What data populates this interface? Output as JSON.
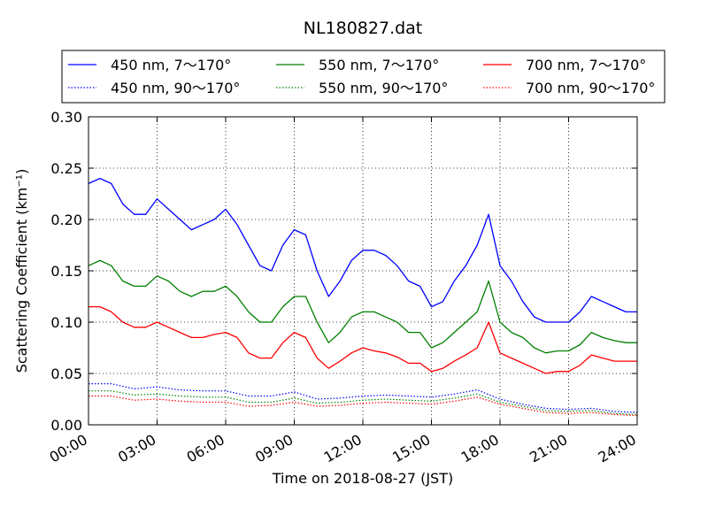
{
  "chart_data": {
    "type": "line",
    "title": "NL180827.dat",
    "xlabel": "Time on 2018-08-27 (JST)",
    "ylabel": "Scattering Coefficient (km⁻¹)",
    "x_ticks": [
      "00:00",
      "03:00",
      "06:00",
      "09:00",
      "12:00",
      "15:00",
      "18:00",
      "21:00",
      "24:00"
    ],
    "y_ticks": [
      "0.00",
      "0.05",
      "0.10",
      "0.15",
      "0.20",
      "0.25",
      "0.30"
    ],
    "xlim": [
      0,
      24
    ],
    "ylim": [
      0,
      0.3
    ],
    "grid": true,
    "legend_position": "top",
    "series": [
      {
        "name": "450 nm, 7～170°",
        "color": "#0000ff",
        "style": "solid",
        "x": [
          0.0,
          0.5,
          1.0,
          1.5,
          2.0,
          2.5,
          3.0,
          3.5,
          4.0,
          4.5,
          5.0,
          5.5,
          6.0,
          6.5,
          7.0,
          7.5,
          8.0,
          8.5,
          9.0,
          9.5,
          10.0,
          10.5,
          11.0,
          11.5,
          12.0,
          12.5,
          13.0,
          13.5,
          14.0,
          14.5,
          15.0,
          15.5,
          16.0,
          16.5,
          17.0,
          17.5,
          18.0,
          18.5,
          19.0,
          19.5,
          20.0,
          20.5,
          21.0,
          21.5,
          22.0,
          22.5,
          23.0,
          23.5,
          24.0
        ],
        "y": [
          0.235,
          0.24,
          0.235,
          0.215,
          0.205,
          0.205,
          0.22,
          0.21,
          0.2,
          0.19,
          0.195,
          0.2,
          0.21,
          0.195,
          0.175,
          0.155,
          0.15,
          0.175,
          0.19,
          0.185,
          0.15,
          0.125,
          0.14,
          0.16,
          0.17,
          0.17,
          0.165,
          0.155,
          0.14,
          0.135,
          0.115,
          0.12,
          0.14,
          0.155,
          0.175,
          0.205,
          0.155,
          0.14,
          0.12,
          0.105,
          0.1,
          0.1,
          0.1,
          0.11,
          0.125,
          0.12,
          0.115,
          0.11,
          0.11
        ]
      },
      {
        "name": "550 nm, 7～170°",
        "color": "#008000",
        "style": "solid",
        "x": [
          0.0,
          0.5,
          1.0,
          1.5,
          2.0,
          2.5,
          3.0,
          3.5,
          4.0,
          4.5,
          5.0,
          5.5,
          6.0,
          6.5,
          7.0,
          7.5,
          8.0,
          8.5,
          9.0,
          9.5,
          10.0,
          10.5,
          11.0,
          11.5,
          12.0,
          12.5,
          13.0,
          13.5,
          14.0,
          14.5,
          15.0,
          15.5,
          16.0,
          16.5,
          17.0,
          17.5,
          18.0,
          18.5,
          19.0,
          19.5,
          20.0,
          20.5,
          21.0,
          21.5,
          22.0,
          22.5,
          23.0,
          23.5,
          24.0
        ],
        "y": [
          0.155,
          0.16,
          0.155,
          0.14,
          0.135,
          0.135,
          0.145,
          0.14,
          0.13,
          0.125,
          0.13,
          0.13,
          0.135,
          0.125,
          0.11,
          0.1,
          0.1,
          0.115,
          0.125,
          0.125,
          0.1,
          0.08,
          0.09,
          0.105,
          0.11,
          0.11,
          0.105,
          0.1,
          0.09,
          0.09,
          0.075,
          0.08,
          0.09,
          0.1,
          0.11,
          0.14,
          0.1,
          0.09,
          0.085,
          0.075,
          0.07,
          0.072,
          0.072,
          0.078,
          0.09,
          0.085,
          0.082,
          0.08,
          0.08
        ]
      },
      {
        "name": "700 nm, 7～170°",
        "color": "#ff0000",
        "style": "solid",
        "x": [
          0.0,
          0.5,
          1.0,
          1.5,
          2.0,
          2.5,
          3.0,
          3.5,
          4.0,
          4.5,
          5.0,
          5.5,
          6.0,
          6.5,
          7.0,
          7.5,
          8.0,
          8.5,
          9.0,
          9.5,
          10.0,
          10.5,
          11.0,
          11.5,
          12.0,
          12.5,
          13.0,
          13.5,
          14.0,
          14.5,
          15.0,
          15.5,
          16.0,
          16.5,
          17.0,
          17.5,
          18.0,
          18.5,
          19.0,
          19.5,
          20.0,
          20.5,
          21.0,
          21.5,
          22.0,
          22.5,
          23.0,
          23.5,
          24.0
        ],
        "y": [
          0.115,
          0.115,
          0.11,
          0.1,
          0.095,
          0.095,
          0.1,
          0.095,
          0.09,
          0.085,
          0.085,
          0.088,
          0.09,
          0.085,
          0.07,
          0.065,
          0.065,
          0.08,
          0.09,
          0.085,
          0.065,
          0.055,
          0.062,
          0.07,
          0.075,
          0.072,
          0.07,
          0.066,
          0.06,
          0.06,
          0.052,
          0.055,
          0.062,
          0.068,
          0.075,
          0.1,
          0.07,
          0.065,
          0.06,
          0.055,
          0.05,
          0.052,
          0.052,
          0.058,
          0.068,
          0.065,
          0.062,
          0.062,
          0.062
        ]
      },
      {
        "name": "450 nm, 90～170°",
        "color": "#0000ff",
        "style": "dotted",
        "x": [
          0.0,
          1.0,
          2.0,
          3.0,
          4.0,
          5.0,
          6.0,
          7.0,
          8.0,
          9.0,
          10.0,
          11.0,
          12.0,
          13.0,
          14.0,
          15.0,
          16.0,
          17.0,
          18.0,
          19.0,
          20.0,
          21.0,
          22.0,
          23.0,
          24.0
        ],
        "y": [
          0.04,
          0.04,
          0.035,
          0.037,
          0.034,
          0.033,
          0.033,
          0.028,
          0.028,
          0.032,
          0.025,
          0.026,
          0.028,
          0.029,
          0.028,
          0.027,
          0.03,
          0.034,
          0.025,
          0.02,
          0.016,
          0.015,
          0.016,
          0.013,
          0.012
        ]
      },
      {
        "name": "550 nm, 90～170°",
        "color": "#008000",
        "style": "dotted",
        "x": [
          0.0,
          1.0,
          2.0,
          3.0,
          4.0,
          5.0,
          6.0,
          7.0,
          8.0,
          9.0,
          10.0,
          11.0,
          12.0,
          13.0,
          14.0,
          15.0,
          16.0,
          17.0,
          18.0,
          19.0,
          20.0,
          21.0,
          22.0,
          23.0,
          24.0
        ],
        "y": [
          0.033,
          0.033,
          0.029,
          0.03,
          0.028,
          0.027,
          0.027,
          0.022,
          0.022,
          0.026,
          0.021,
          0.022,
          0.024,
          0.025,
          0.024,
          0.023,
          0.026,
          0.03,
          0.022,
          0.018,
          0.014,
          0.013,
          0.014,
          0.011,
          0.01
        ]
      },
      {
        "name": "700 nm, 90～170°",
        "color": "#ff0000",
        "style": "dotted",
        "x": [
          0.0,
          1.0,
          2.0,
          3.0,
          4.0,
          5.0,
          6.0,
          7.0,
          8.0,
          9.0,
          10.0,
          11.0,
          12.0,
          13.0,
          14.0,
          15.0,
          16.0,
          17.0,
          18.0,
          19.0,
          20.0,
          21.0,
          22.0,
          23.0,
          24.0
        ],
        "y": [
          0.028,
          0.028,
          0.024,
          0.025,
          0.023,
          0.022,
          0.022,
          0.018,
          0.019,
          0.022,
          0.018,
          0.019,
          0.021,
          0.022,
          0.021,
          0.02,
          0.023,
          0.027,
          0.02,
          0.016,
          0.012,
          0.011,
          0.012,
          0.01,
          0.009
        ]
      }
    ]
  }
}
